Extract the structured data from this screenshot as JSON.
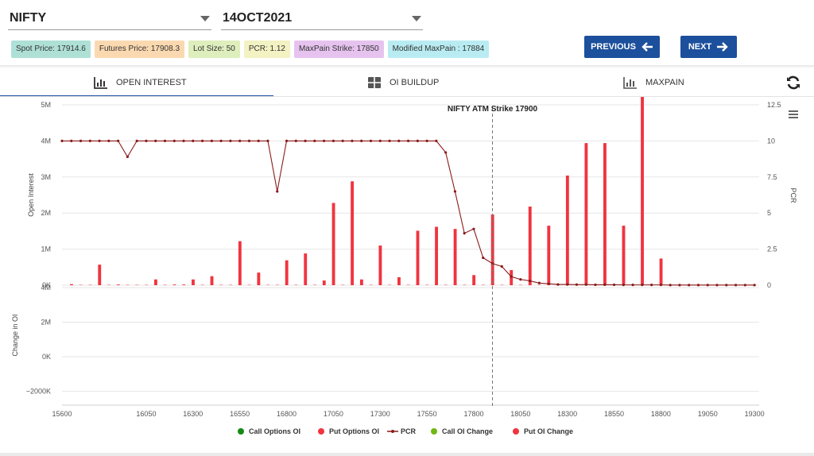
{
  "selectors": {
    "symbol": "NIFTY",
    "expiry": "14OCT2021"
  },
  "badges": [
    {
      "label": "Spot Price: 17914.6",
      "color": "#aee0d6"
    },
    {
      "label": "Futures Price: 17908.3",
      "color": "#fbd9b0"
    },
    {
      "label": "Lot Size: 50",
      "color": "#dfeebd"
    },
    {
      "label": "PCR: 1.12",
      "color": "#f2f2c2"
    },
    {
      "label": "MaxPain Strike: 17850",
      "color": "#e6c3ef"
    },
    {
      "label": "Modified MaxPain : 17884",
      "color": "#b9ecf2"
    }
  ],
  "nav": {
    "previous": "PREVIOUS",
    "next": "NEXT",
    "previous_icon": "arrow-left-icon",
    "next_icon": "arrow-right-icon"
  },
  "tabs": [
    {
      "label": "OPEN INTEREST",
      "icon": "bar-chart-icon",
      "active": true
    },
    {
      "label": "OI BUILDUP",
      "icon": "grid-table-icon",
      "active": false
    },
    {
      "label": "MAXPAIN",
      "icon": "bar-chart-icon",
      "active": false
    }
  ],
  "toolbar": {
    "refresh_icon": "refresh-icon",
    "menu_icon": "hamburger-menu-icon"
  },
  "chart_data": {
    "type": "bar",
    "annotation": "NIFTY ATM Strike 17900",
    "atm_strike": 17900,
    "x_ticks": [
      "15600",
      "16050",
      "16300",
      "16550",
      "16800",
      "17050",
      "17300",
      "17550",
      "17800",
      "18050",
      "18300",
      "18550",
      "18800",
      "19050",
      "19300"
    ],
    "strikes": [
      15600,
      15650,
      15700,
      15750,
      15800,
      15850,
      15900,
      15950,
      16000,
      16050,
      16100,
      16150,
      16200,
      16250,
      16300,
      16350,
      16400,
      16450,
      16500,
      16550,
      16600,
      16650,
      16700,
      16750,
      16800,
      16850,
      16900,
      16950,
      17000,
      17050,
      17100,
      17150,
      17200,
      17250,
      17300,
      17350,
      17400,
      17450,
      17500,
      17550,
      17600,
      17650,
      17700,
      17750,
      17800,
      17850,
      17900,
      17950,
      18000,
      18050,
      18100,
      18150,
      18200,
      18250,
      18300,
      18350,
      18400,
      18450,
      18500,
      18550,
      18600,
      18650,
      18700,
      18750,
      18800,
      18850,
      18900,
      18950,
      19000,
      19050,
      19100,
      19150,
      19200,
      19250,
      19300
    ],
    "top_panel": {
      "ylabel_left": "Open Interest",
      "ylabel_right": "PCR",
      "y_left_ticks": [
        "5M",
        "4M",
        "3M",
        "2M",
        "1M",
        "0K"
      ],
      "y_left_range": [
        0,
        5000000
      ],
      "y_right_ticks": [
        "12.5",
        "10",
        "7.5",
        "5",
        "2.5",
        "0"
      ],
      "y_right_range": [
        0,
        12.5
      ],
      "series": [
        {
          "name": "Call Options OI",
          "color": "#138a13",
          "values": [
            0,
            0,
            0,
            0,
            0,
            0,
            0,
            0,
            0,
            0,
            0,
            0,
            0,
            0,
            0,
            0,
            0,
            0,
            0,
            0,
            0,
            0,
            0,
            0,
            0,
            0,
            0,
            0,
            0,
            0,
            0,
            0,
            0,
            0,
            0,
            0,
            0,
            0,
            0,
            0,
            0,
            0,
            0,
            0,
            0,
            0,
            0,
            0,
            0,
            0,
            0,
            0,
            0,
            0,
            0,
            0,
            0,
            0,
            0,
            0,
            0,
            0,
            0,
            0,
            0,
            0,
            0,
            0,
            0,
            0,
            0,
            0,
            0,
            0,
            0
          ]
        },
        {
          "name": "Put Options OI",
          "color": "#f0343f",
          "values": [
            0,
            30000,
            10000,
            10000,
            570000,
            10000,
            20000,
            10000,
            10000,
            10000,
            160000,
            10000,
            20000,
            20000,
            160000,
            10000,
            250000,
            10000,
            10000,
            1220000,
            10000,
            350000,
            10000,
            10000,
            690000,
            10000,
            880000,
            10000,
            130000,
            2280000,
            10000,
            2880000,
            160000,
            10000,
            1100000,
            10000,
            220000,
            10000,
            1510000,
            10000,
            1620000,
            10000,
            1560000,
            10000,
            280000,
            10000,
            1960000,
            10000,
            420000,
            10000,
            2180000,
            10000,
            1650000,
            10000,
            3040000,
            10000,
            3940000,
            10000,
            3940000,
            10000,
            1650000,
            10000,
            6240000,
            10000,
            740000,
            10000,
            10000,
            10000,
            10000,
            10000,
            10000,
            10000,
            10000,
            10000,
            10000
          ]
        },
        {
          "name": "PCR",
          "color": "#8b1a1a",
          "values": [
            10,
            10,
            10,
            10,
            10,
            10,
            10,
            8.9,
            10,
            10,
            10,
            10,
            10,
            10,
            10,
            10,
            10,
            10,
            10,
            10,
            10,
            10,
            10,
            6.5,
            10,
            10,
            10,
            10,
            10,
            10,
            10,
            10,
            10,
            10,
            10,
            10,
            10,
            10,
            10,
            10,
            10,
            9.2,
            6.5,
            3.6,
            3.9,
            1.9,
            1.5,
            1.3,
            0.6,
            0.4,
            0.3,
            0.15,
            0.1,
            0.05,
            0.05,
            0.04,
            0.04,
            0.03,
            0.03,
            0.03,
            0.02,
            0.02,
            0.02,
            0.02,
            0.02,
            0.01,
            0.01,
            0.01,
            0.01,
            0.01,
            0.01,
            0.01,
            0.01,
            0.01,
            0.01
          ]
        }
      ]
    },
    "bottom_panel": {
      "ylabel_left": "Change in OI",
      "y_left_ticks": [
        "4M",
        "2M",
        "0K",
        "−2000K"
      ],
      "y_left_range": [
        -2800000,
        4000000
      ],
      "series": [
        {
          "name": "Call OI Change",
          "color": "#6eb813",
          "values": []
        },
        {
          "name": "Put OI Change",
          "color": "#f0343f",
          "values": []
        }
      ]
    },
    "legend": [
      "Call Options OI",
      "Put Options OI",
      "PCR",
      "Call OI Change",
      "Put OI Change"
    ],
    "legend_position": "bottom"
  }
}
